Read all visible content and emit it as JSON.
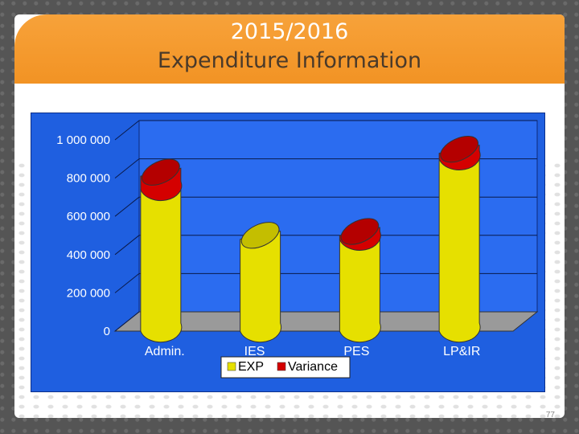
{
  "slide": {
    "title_line1": "2015/2016",
    "title_line2": "Expenditure Information",
    "page_number": "77"
  },
  "colors": {
    "header": "#f29324",
    "chart_bg": "#1f5fe0",
    "exp": "#e6e000",
    "variance": "#d40000"
  },
  "chart_data": {
    "type": "bar",
    "style": "3d-cylinder-stacked",
    "categories": [
      "Admin.",
      "IES",
      "PES",
      "LP&IR"
    ],
    "series": [
      {
        "name": "EXP",
        "color": "#e6e000",
        "values": [
          740000,
          480000,
          480000,
          900000
        ]
      },
      {
        "name": "Variance",
        "color": "#d40000",
        "values": [
          70000,
          0,
          20000,
          30000
        ]
      }
    ],
    "ylim": [
      0,
      1000000
    ],
    "yticks": [
      "0",
      "200 000",
      "400 000",
      "600 000",
      "800 000",
      "1 000 000"
    ],
    "grid": true,
    "legend": "bottom"
  }
}
